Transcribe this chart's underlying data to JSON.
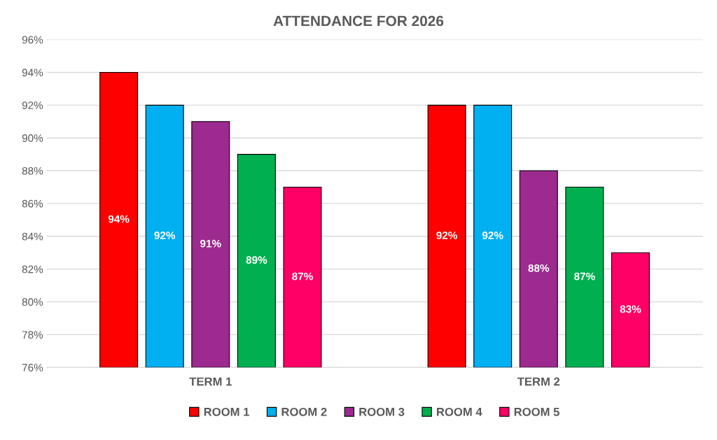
{
  "chart_data": {
    "type": "bar",
    "title": "ATTENDANCE FOR 2026",
    "categories": [
      "TERM 1",
      "TERM 2"
    ],
    "series": [
      {
        "name": "ROOM 1",
        "color": "#ff0000",
        "values": [
          94,
          92
        ],
        "value_labels": [
          "94%",
          "92%"
        ]
      },
      {
        "name": "ROOM 2",
        "color": "#00b0f0",
        "values": [
          92,
          92
        ],
        "value_labels": [
          "92%",
          "92%"
        ]
      },
      {
        "name": "ROOM 3",
        "color": "#9c2a8f",
        "values": [
          91,
          88
        ],
        "value_labels": [
          "91%",
          "88%"
        ]
      },
      {
        "name": "ROOM 4",
        "color": "#00b050",
        "values": [
          89,
          87
        ],
        "value_labels": [
          "89%",
          "87%"
        ]
      },
      {
        "name": "ROOM 5",
        "color": "#ff0066",
        "values": [
          87,
          83
        ],
        "value_labels": [
          "87%",
          "83%"
        ]
      }
    ],
    "ylim": [
      76,
      96
    ],
    "yticks": [
      {
        "value": 76,
        "label": "76%"
      },
      {
        "value": 78,
        "label": "78%"
      },
      {
        "value": 80,
        "label": "80%"
      },
      {
        "value": 82,
        "label": "82%"
      },
      {
        "value": 84,
        "label": "84%"
      },
      {
        "value": 86,
        "label": "86%"
      },
      {
        "value": 88,
        "label": "88%"
      },
      {
        "value": 90,
        "label": "90%"
      },
      {
        "value": 92,
        "label": "92%"
      },
      {
        "value": 94,
        "label": "94%"
      },
      {
        "value": 96,
        "label": "96%"
      }
    ],
    "grid": "y",
    "legend": "bottom"
  }
}
